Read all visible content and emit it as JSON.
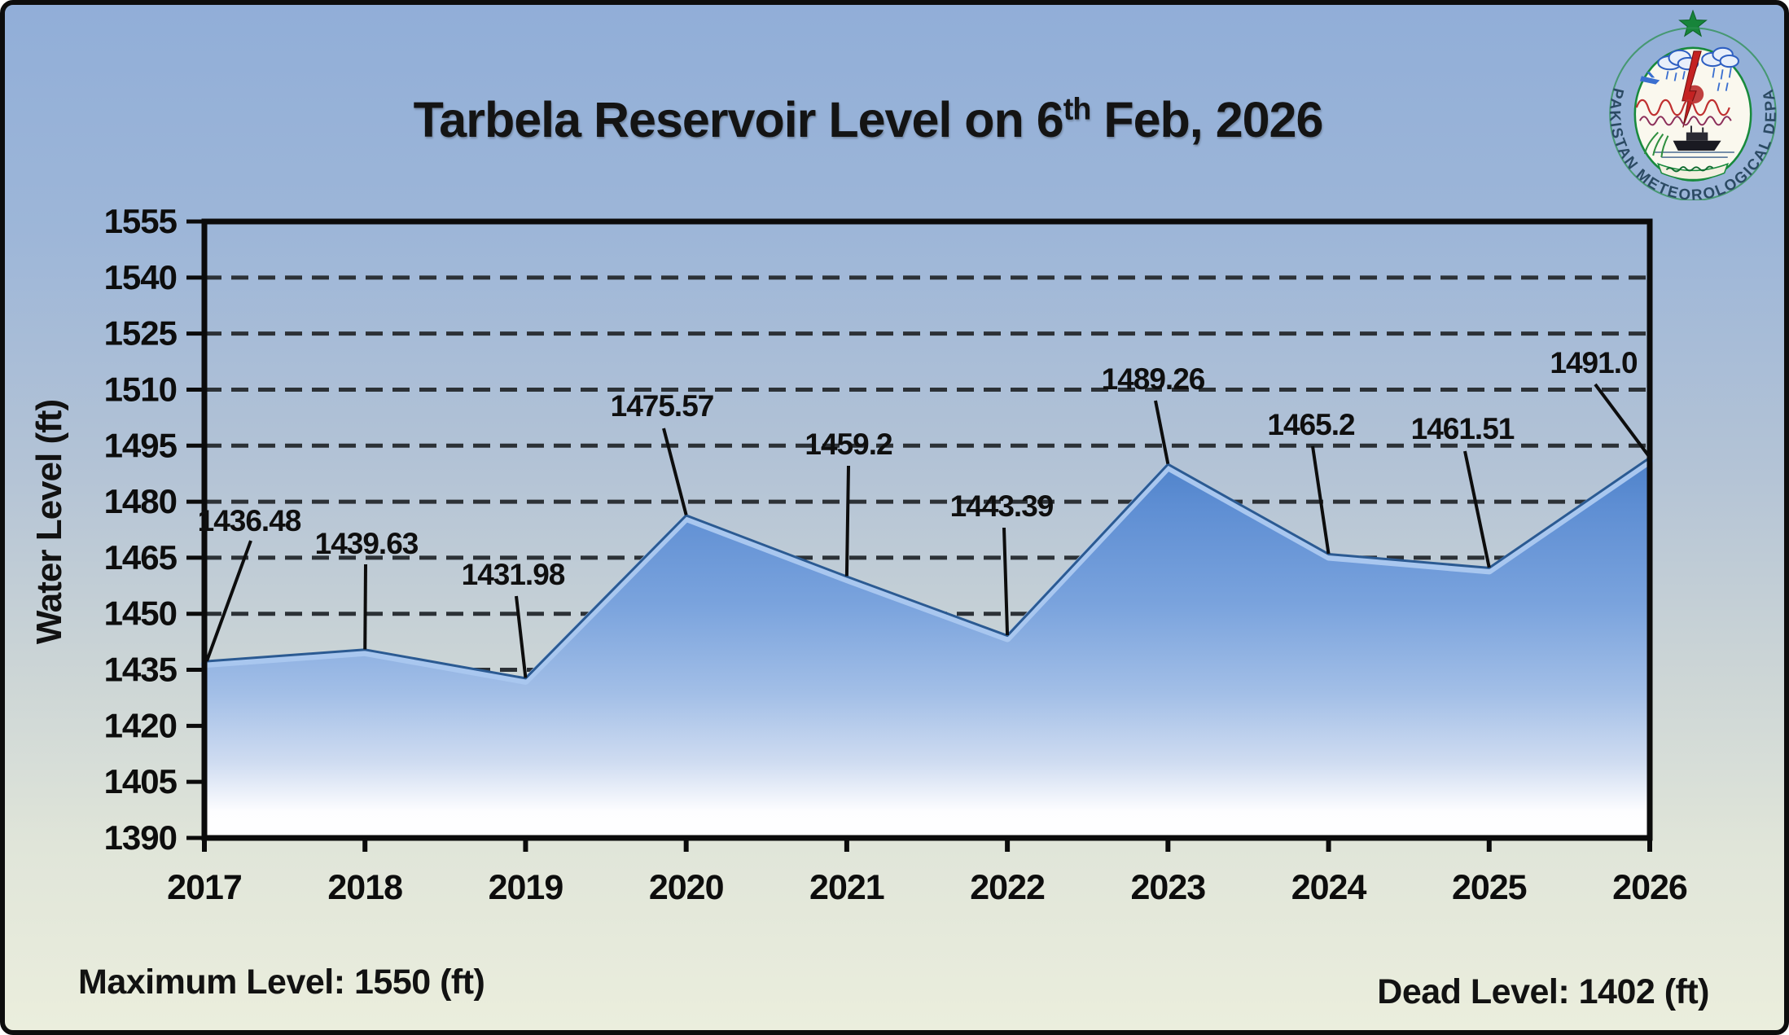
{
  "header": {
    "title_prefix": "Tarbela Reservoir Level on 6",
    "title_superscript": "th",
    "title_suffix": " Feb, 2026"
  },
  "logo": {
    "ring_text": "PAKISTAN METEOROLOGICAL DEPARTMENT"
  },
  "chart_data": {
    "type": "area",
    "title": "Tarbela Reservoir Level on 6th Feb, 2026",
    "categories": [
      "2017",
      "2018",
      "2019",
      "2020",
      "2021",
      "2022",
      "2023",
      "2024",
      "2025",
      "2026"
    ],
    "values": [
      1436.48,
      1439.63,
      1431.98,
      1475.57,
      1459.2,
      1443.39,
      1489.26,
      1465.2,
      1461.51,
      1491.0
    ],
    "point_labels": [
      "1436.48",
      "1439.63",
      "1431.98",
      "1475.57",
      "1459.2",
      "1443.39",
      "1489.26",
      "1465.2",
      "1461.51",
      "1491.0"
    ],
    "xlabel": "",
    "ylabel": "Water Level (ft)",
    "ylim": [
      1390,
      1555
    ],
    "ytick_step": 15,
    "grid": "horizontal-dashed",
    "legend": "none",
    "colors": {
      "grid": "#2c3136",
      "axis": "#0b0b0b",
      "leader": "#0d0d0d",
      "area_top": "#4e82ca",
      "area_bottom": "#ffffff",
      "ridge": "#a9c7ef",
      "ridge_dark": "#2b5a92"
    }
  },
  "footer": {
    "max_level": "Maximum Level: 1550 (ft)",
    "dead_level": "Dead Level: 1402 (ft)"
  }
}
